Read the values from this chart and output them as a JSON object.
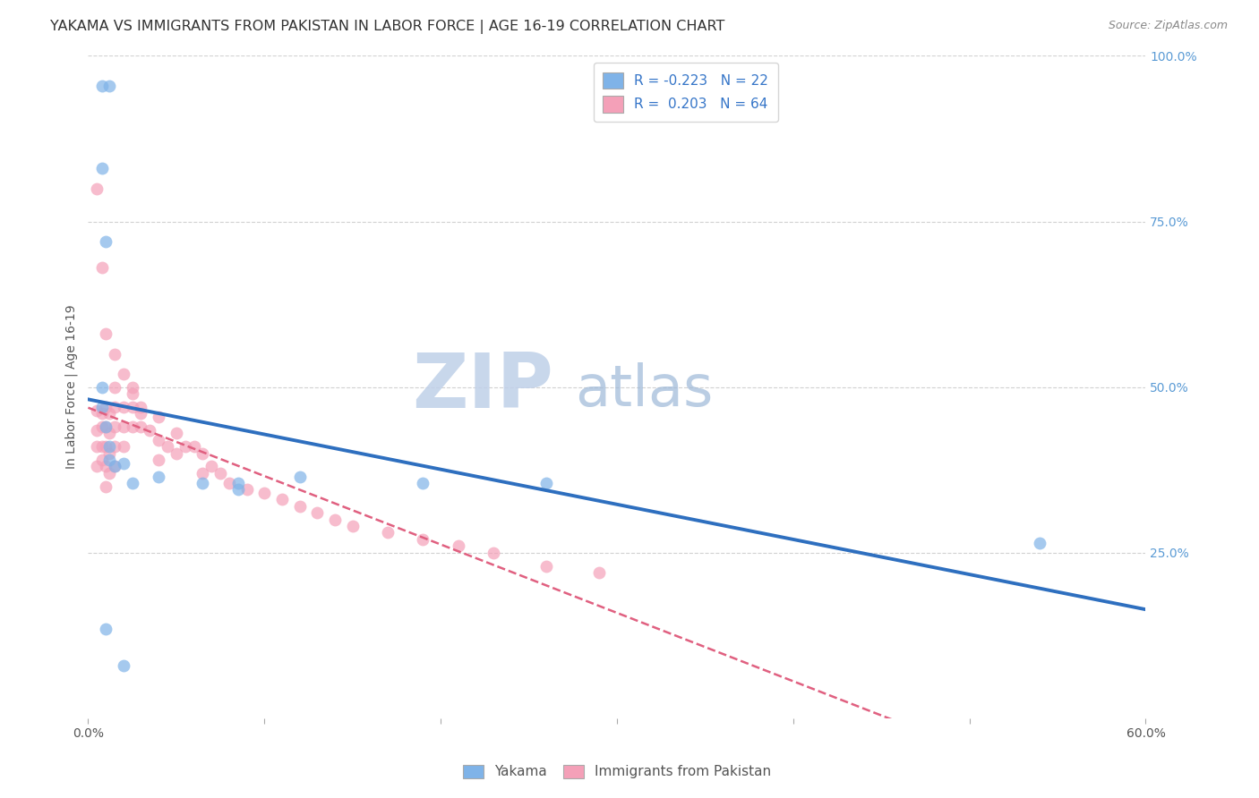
{
  "title": "YAKAMA VS IMMIGRANTS FROM PAKISTAN IN LABOR FORCE | AGE 16-19 CORRELATION CHART",
  "source_text": "Source: ZipAtlas.com",
  "ylabel": "In Labor Force | Age 16-19",
  "legend_labels": [
    "Yakama",
    "Immigrants from Pakistan"
  ],
  "r_yakama": -0.223,
  "n_yakama": 22,
  "r_pakistan": 0.203,
  "n_pakistan": 64,
  "xmin": 0.0,
  "xmax": 0.6,
  "ymin": 0.0,
  "ymax": 1.0,
  "color_yakama": "#7FB3E8",
  "color_pakistan": "#F4A0B8",
  "line_color_yakama": "#2E6FBF",
  "line_color_pakistan": "#E06080",
  "background_color": "#FFFFFF",
  "watermark_zip": "ZIP",
  "watermark_atlas": "atlas",
  "watermark_color_zip": "#BFD0E8",
  "watermark_color_atlas": "#9DB8D8",
  "grid_color": "#CCCCCC",
  "title_fontsize": 11.5,
  "axis_label_fontsize": 10,
  "tick_fontsize": 10,
  "legend_fontsize": 11,
  "source_fontsize": 9,
  "scatter_yakama_x": [
    0.008,
    0.012,
    0.008,
    0.01,
    0.008,
    0.008,
    0.01,
    0.012,
    0.012,
    0.015,
    0.02,
    0.025,
    0.04,
    0.065,
    0.085,
    0.085,
    0.12,
    0.19,
    0.26,
    0.54,
    0.01,
    0.02
  ],
  "scatter_yakama_y": [
    0.955,
    0.955,
    0.83,
    0.72,
    0.5,
    0.47,
    0.44,
    0.41,
    0.39,
    0.38,
    0.385,
    0.355,
    0.365,
    0.355,
    0.355,
    0.345,
    0.365,
    0.355,
    0.355,
    0.265,
    0.135,
    0.08
  ],
  "scatter_pakistan_x": [
    0.005,
    0.005,
    0.005,
    0.005,
    0.008,
    0.008,
    0.008,
    0.008,
    0.01,
    0.01,
    0.01,
    0.01,
    0.01,
    0.012,
    0.012,
    0.012,
    0.012,
    0.015,
    0.015,
    0.015,
    0.015,
    0.015,
    0.02,
    0.02,
    0.02,
    0.025,
    0.025,
    0.025,
    0.03,
    0.03,
    0.035,
    0.04,
    0.04,
    0.04,
    0.045,
    0.05,
    0.05,
    0.055,
    0.06,
    0.065,
    0.065,
    0.07,
    0.075,
    0.08,
    0.09,
    0.1,
    0.11,
    0.12,
    0.13,
    0.14,
    0.15,
    0.17,
    0.19,
    0.21,
    0.23,
    0.26,
    0.29,
    0.005,
    0.008,
    0.01,
    0.015,
    0.02,
    0.025,
    0.03
  ],
  "scatter_pakistan_y": [
    0.465,
    0.435,
    0.41,
    0.38,
    0.46,
    0.44,
    0.41,
    0.39,
    0.47,
    0.44,
    0.41,
    0.38,
    0.35,
    0.46,
    0.43,
    0.4,
    0.37,
    0.5,
    0.47,
    0.44,
    0.41,
    0.38,
    0.47,
    0.44,
    0.41,
    0.5,
    0.47,
    0.44,
    0.47,
    0.44,
    0.435,
    0.455,
    0.42,
    0.39,
    0.41,
    0.43,
    0.4,
    0.41,
    0.41,
    0.4,
    0.37,
    0.38,
    0.37,
    0.355,
    0.345,
    0.34,
    0.33,
    0.32,
    0.31,
    0.3,
    0.29,
    0.28,
    0.27,
    0.26,
    0.25,
    0.23,
    0.22,
    0.8,
    0.68,
    0.58,
    0.55,
    0.52,
    0.49,
    0.46
  ]
}
